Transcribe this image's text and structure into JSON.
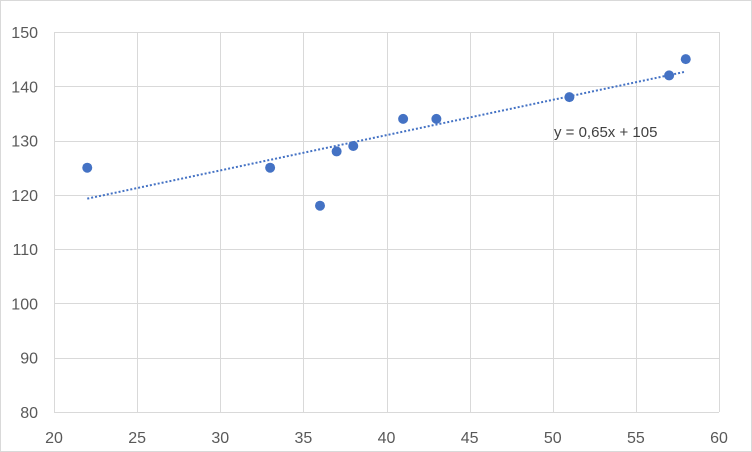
{
  "chart_data": {
    "type": "scatter",
    "title": "",
    "xlabel": "",
    "ylabel": "",
    "xlim": [
      20,
      60
    ],
    "ylim": [
      80,
      150
    ],
    "x_ticks": [
      20,
      25,
      30,
      35,
      40,
      45,
      50,
      55,
      60
    ],
    "y_ticks": [
      80,
      90,
      100,
      110,
      120,
      130,
      140,
      150
    ],
    "grid": true,
    "legend": "none",
    "series": [
      {
        "points": [
          {
            "x": 22,
            "y": 125
          },
          {
            "x": 33,
            "y": 125
          },
          {
            "x": 36,
            "y": 118
          },
          {
            "x": 37,
            "y": 128
          },
          {
            "x": 38,
            "y": 129
          },
          {
            "x": 41,
            "y": 134
          },
          {
            "x": 43,
            "y": 134
          },
          {
            "x": 51,
            "y": 138
          },
          {
            "x": 57,
            "y": 142
          },
          {
            "x": 58,
            "y": 145
          }
        ],
        "color": "#4472c4"
      }
    ],
    "trendline": {
      "type": "linear",
      "slope": 0.65,
      "intercept": 105,
      "x_range": [
        22,
        58
      ],
      "style": "dotted",
      "color": "#4472c4",
      "equation_label": "y = 0,65x + 105"
    },
    "colors": {
      "grid": "#d9d9d9",
      "tick_text": "#595959"
    }
  }
}
